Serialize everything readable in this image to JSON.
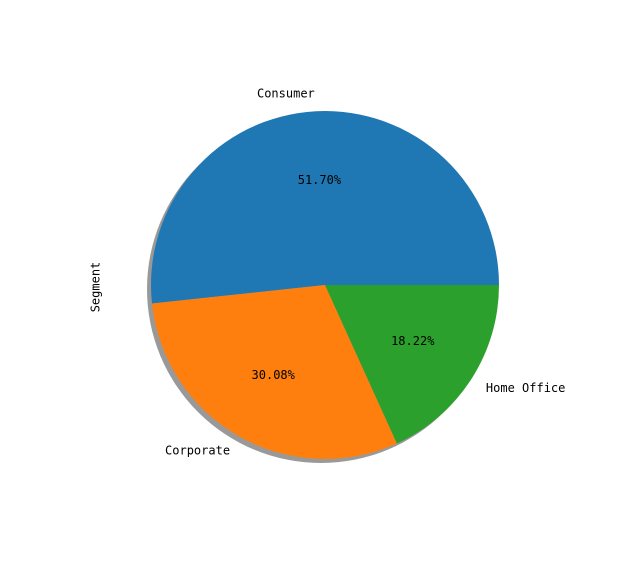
{
  "chart_data": {
    "type": "pie",
    "ylabel": "Segment",
    "categories": [
      "Consumer",
      "Corporate",
      "Home Office"
    ],
    "values": [
      51.7,
      30.08,
      18.22
    ],
    "value_labels": [
      "51.70%",
      "30.08%",
      "18.22%"
    ],
    "colors": [
      "#1f77b4",
      "#ff7f0e",
      "#2ca02c"
    ],
    "shadow": true
  }
}
